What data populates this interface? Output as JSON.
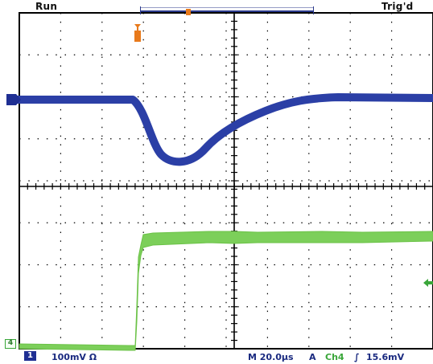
{
  "status": {
    "acquisition": "Run",
    "trigger": "Trig'd"
  },
  "markers": {
    "ch4": "4"
  },
  "readout": {
    "ch1_label": "1",
    "ch1_scale": "100mV Ω",
    "timebase": "M 20.0μs",
    "trigger_source_label": "A",
    "trigger_channel": "Ch4",
    "trigger_slope": "∫",
    "trigger_level": "15.6mV"
  },
  "colors": {
    "ch1_trace": "#2b3fa6",
    "ch4_trace": "#7ccf5a",
    "trigger_marker": "#e87a1c",
    "graticule": "#000000",
    "ui_text": "#1a2a80"
  },
  "icons": {
    "ch1_ground_marker": "right-arrow",
    "ch4_trigger_level": "left-arrow",
    "trigger_position": "down-arrow"
  }
}
